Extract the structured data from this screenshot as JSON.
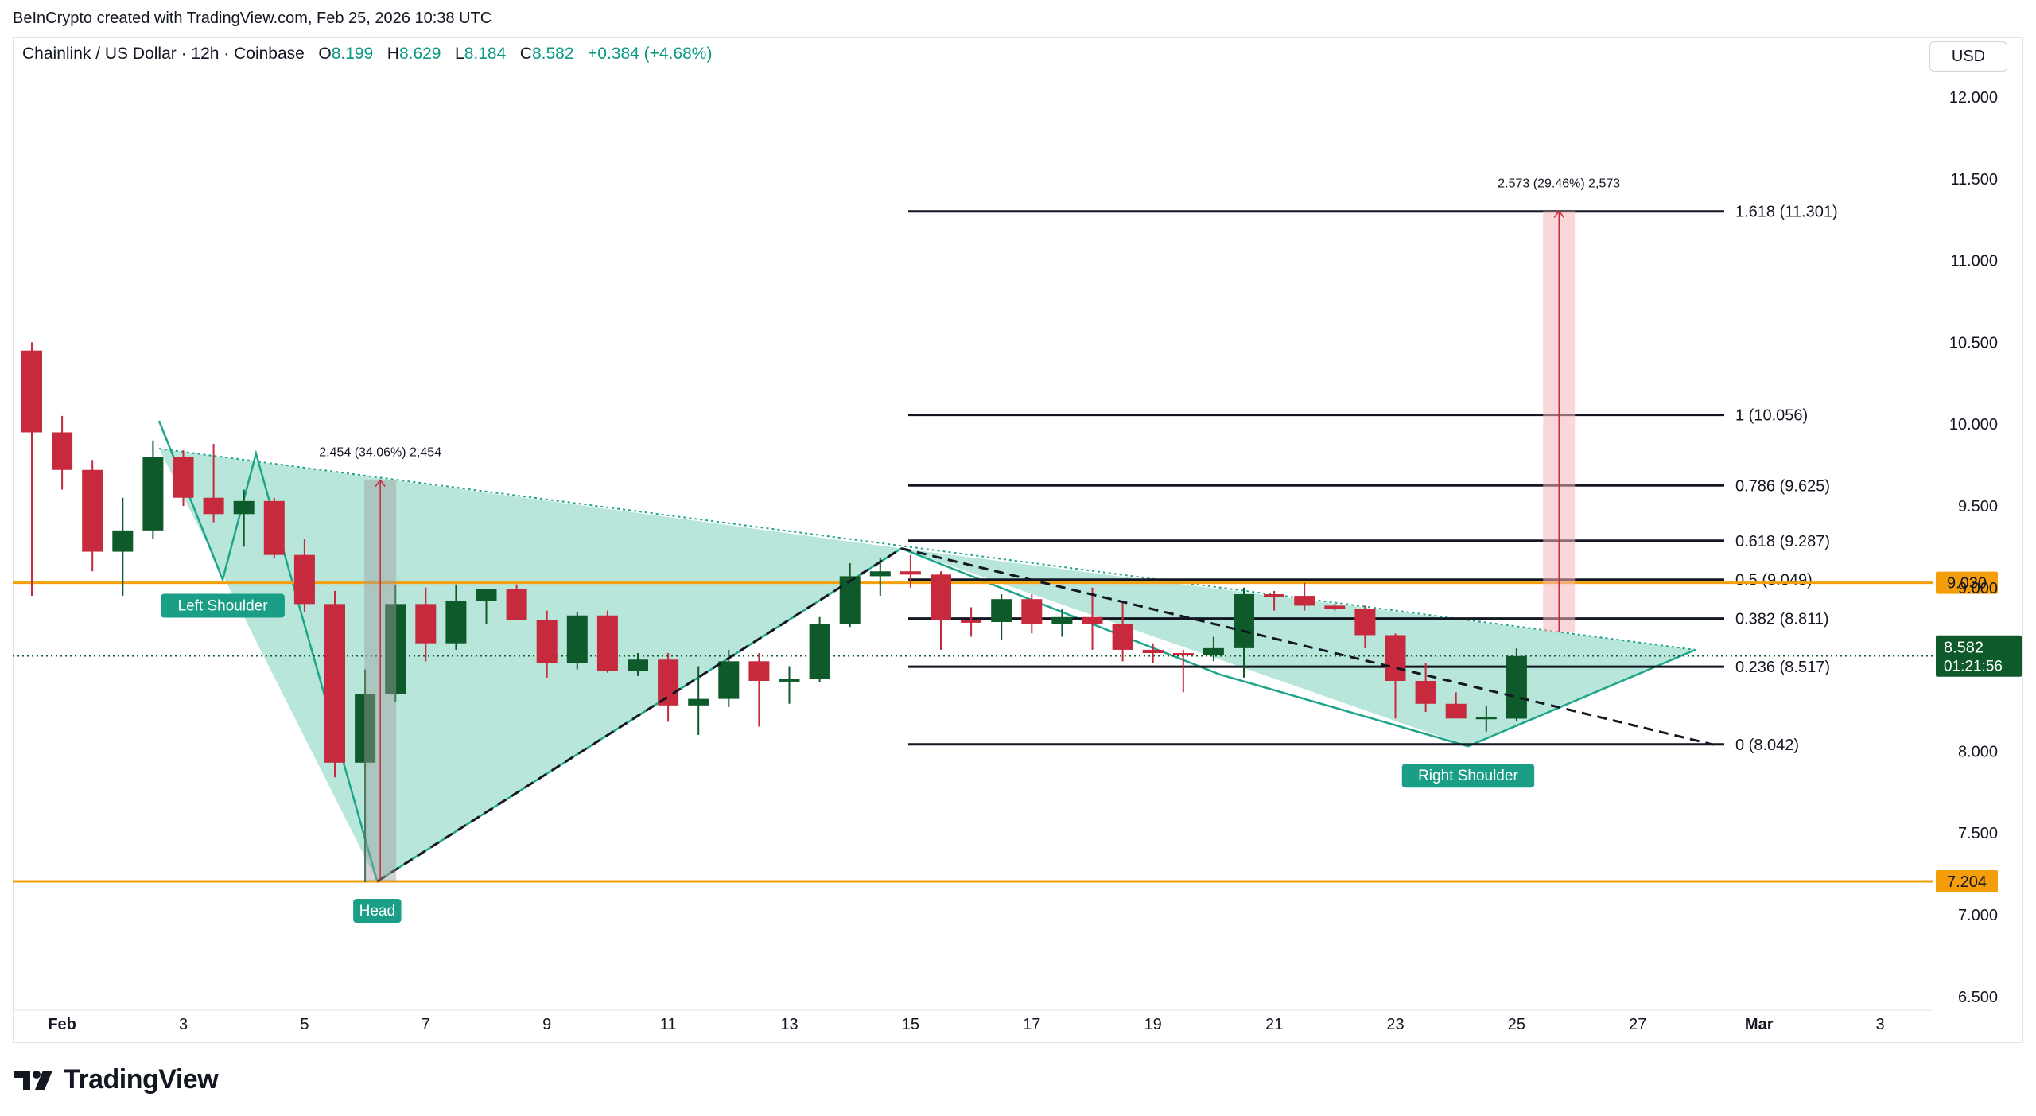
{
  "credit": "BeInCrypto created with TradingView.com, Feb 25, 2026 10:38 UTC",
  "symbol": {
    "name": "Chainlink / US Dollar · 12h · Coinbase",
    "o_label": "O",
    "o": "8.199",
    "h_label": "H",
    "h": "8.629",
    "l_label": "L",
    "l": "8.184",
    "c_label": "C",
    "c": "8.582",
    "change": "+0.384 (+4.68%)"
  },
  "currency_button": "USD",
  "logo_text": "TradingView",
  "colors": {
    "up": "#0e5a2a",
    "down": "#c62a3c",
    "pattern_fill": "#b5e5d8",
    "pattern_stroke": "#1ca58a",
    "orange": "#f59e0b",
    "label_bg": "#1a9e85"
  },
  "chart_data": {
    "type": "candlestick",
    "ylim": [
      6.3,
      12.2
    ],
    "y_ticks": [
      12.0,
      11.5,
      11.0,
      10.5,
      10.0,
      9.5,
      9.0,
      8.0,
      7.5,
      7.0,
      6.5
    ],
    "y_tick_labels": [
      "12.000",
      "11.500",
      "11.000",
      "10.500",
      "10.000",
      "9.500",
      "9.000",
      "8.000",
      "7.500",
      "7.000",
      "6.500"
    ],
    "x_ticks": [
      {
        "label": "Feb",
        "i": 1
      },
      {
        "label": "3",
        "i": 5
      },
      {
        "label": "5",
        "i": 9
      },
      {
        "label": "7",
        "i": 13
      },
      {
        "label": "9",
        "i": 17
      },
      {
        "label": "11",
        "i": 21
      },
      {
        "label": "13",
        "i": 25
      },
      {
        "label": "15",
        "i": 29
      },
      {
        "label": "17",
        "i": 33
      },
      {
        "label": "19",
        "i": 37
      },
      {
        "label": "21",
        "i": 41
      },
      {
        "label": "23",
        "i": 45
      },
      {
        "label": "25",
        "i": 49
      },
      {
        "label": "27",
        "i": 53
      },
      {
        "label": "Mar",
        "i": 57
      },
      {
        "label": "3",
        "i": 61
      }
    ],
    "candles": [
      {
        "o": 10.45,
        "h": 10.5,
        "l": 8.95,
        "c": 9.95
      },
      {
        "o": 9.95,
        "h": 10.05,
        "l": 9.6,
        "c": 9.72
      },
      {
        "o": 9.72,
        "h": 9.78,
        "l": 9.1,
        "c": 9.22
      },
      {
        "o": 9.22,
        "h": 9.55,
        "l": 8.95,
        "c": 9.35
      },
      {
        "o": 9.35,
        "h": 9.9,
        "l": 9.3,
        "c": 9.8
      },
      {
        "o": 9.8,
        "h": 9.84,
        "l": 9.5,
        "c": 9.55
      },
      {
        "o": 9.55,
        "h": 9.88,
        "l": 9.4,
        "c": 9.45
      },
      {
        "o": 9.45,
        "h": 9.6,
        "l": 9.25,
        "c": 9.53
      },
      {
        "o": 9.53,
        "h": 9.55,
        "l": 9.18,
        "c": 9.2
      },
      {
        "o": 9.2,
        "h": 9.3,
        "l": 8.85,
        "c": 8.9
      },
      {
        "o": 8.9,
        "h": 8.98,
        "l": 7.84,
        "c": 7.93
      },
      {
        "o": 7.93,
        "h": 8.5,
        "l": 7.2,
        "c": 8.35
      },
      {
        "o": 8.35,
        "h": 9.02,
        "l": 8.3,
        "c": 8.9
      },
      {
        "o": 8.9,
        "h": 9.0,
        "l": 8.55,
        "c": 8.66
      },
      {
        "o": 8.66,
        "h": 9.02,
        "l": 8.62,
        "c": 8.92
      },
      {
        "o": 8.92,
        "h": 8.99,
        "l": 8.78,
        "c": 8.99
      },
      {
        "o": 8.99,
        "h": 9.02,
        "l": 8.8,
        "c": 8.8
      },
      {
        "o": 8.8,
        "h": 8.86,
        "l": 8.45,
        "c": 8.54
      },
      {
        "o": 8.54,
        "h": 8.85,
        "l": 8.5,
        "c": 8.83
      },
      {
        "o": 8.83,
        "h": 8.86,
        "l": 8.48,
        "c": 8.49
      },
      {
        "o": 8.49,
        "h": 8.6,
        "l": 8.46,
        "c": 8.56
      },
      {
        "o": 8.56,
        "h": 8.6,
        "l": 8.18,
        "c": 8.28
      },
      {
        "o": 8.28,
        "h": 8.52,
        "l": 8.1,
        "c": 8.32
      },
      {
        "o": 8.32,
        "h": 8.62,
        "l": 8.27,
        "c": 8.55
      },
      {
        "o": 8.55,
        "h": 8.6,
        "l": 8.15,
        "c": 8.43
      },
      {
        "o": 8.43,
        "h": 8.52,
        "l": 8.29,
        "c": 8.44
      },
      {
        "o": 8.44,
        "h": 8.82,
        "l": 8.42,
        "c": 8.78
      },
      {
        "o": 8.78,
        "h": 9.15,
        "l": 8.76,
        "c": 9.07
      },
      {
        "o": 9.07,
        "h": 9.18,
        "l": 8.95,
        "c": 9.1
      },
      {
        "o": 9.1,
        "h": 9.2,
        "l": 9.0,
        "c": 9.08
      },
      {
        "o": 9.08,
        "h": 9.1,
        "l": 8.62,
        "c": 8.8
      },
      {
        "o": 8.8,
        "h": 8.88,
        "l": 8.7,
        "c": 8.79
      },
      {
        "o": 8.79,
        "h": 8.96,
        "l": 8.68,
        "c": 8.93
      },
      {
        "o": 8.93,
        "h": 8.96,
        "l": 8.72,
        "c": 8.78
      },
      {
        "o": 8.78,
        "h": 8.87,
        "l": 8.7,
        "c": 8.82
      },
      {
        "o": 8.82,
        "h": 9.0,
        "l": 8.62,
        "c": 8.78
      },
      {
        "o": 8.78,
        "h": 8.92,
        "l": 8.55,
        "c": 8.62
      },
      {
        "o": 8.62,
        "h": 8.66,
        "l": 8.54,
        "c": 8.6
      },
      {
        "o": 8.6,
        "h": 8.62,
        "l": 8.36,
        "c": 8.59
      },
      {
        "o": 8.59,
        "h": 8.7,
        "l": 8.55,
        "c": 8.63
      },
      {
        "o": 8.63,
        "h": 9.0,
        "l": 8.45,
        "c": 8.96
      },
      {
        "o": 8.96,
        "h": 8.98,
        "l": 8.86,
        "c": 8.95
      },
      {
        "o": 8.95,
        "h": 9.03,
        "l": 8.86,
        "c": 8.89
      },
      {
        "o": 8.89,
        "h": 8.9,
        "l": 8.86,
        "c": 8.87
      },
      {
        "o": 8.87,
        "h": 8.89,
        "l": 8.63,
        "c": 8.71
      },
      {
        "o": 8.71,
        "h": 8.72,
        "l": 8.2,
        "c": 8.43
      },
      {
        "o": 8.43,
        "h": 8.54,
        "l": 8.24,
        "c": 8.29
      },
      {
        "o": 8.29,
        "h": 8.36,
        "l": 8.21,
        "c": 8.2
      },
      {
        "o": 8.2,
        "h": 8.28,
        "l": 8.12,
        "c": 8.21
      },
      {
        "o": 8.199,
        "h": 8.629,
        "l": 8.184,
        "c": 8.582
      }
    ],
    "horizontal_levels": [
      {
        "label": "9.030",
        "value": 9.03
      },
      {
        "label": "7.204",
        "value": 7.204
      }
    ],
    "price_tag": {
      "price": "8.582",
      "countdown": "01:21:56",
      "value": 8.582
    },
    "fib_levels": [
      {
        "label": "1.618 (11.301)",
        "value": 11.301
      },
      {
        "label": "1 (10.056)",
        "value": 10.056
      },
      {
        "label": "0.786 (9.625)",
        "value": 9.625
      },
      {
        "label": "0.618 (9.287)",
        "value": 9.287
      },
      {
        "label": "0.5 (9.049)",
        "value": 9.049
      },
      {
        "label": "0.382 (8.811)",
        "value": 8.811
      },
      {
        "label": "0.236 (8.517)",
        "value": 8.517
      },
      {
        "label": "0 (8.042)",
        "value": 8.042
      }
    ],
    "pattern_labels": [
      {
        "text": "Left Shoulder"
      },
      {
        "text": "Head"
      },
      {
        "text": "Right Shoulder"
      }
    ],
    "measure_1": {
      "text": "2.454 (34.06%) 2,454",
      "from": 7.204,
      "to": 9.658
    },
    "measure_2": {
      "text": "2.573 (29.46%) 2,573",
      "from": 8.73,
      "to": 11.303
    }
  }
}
